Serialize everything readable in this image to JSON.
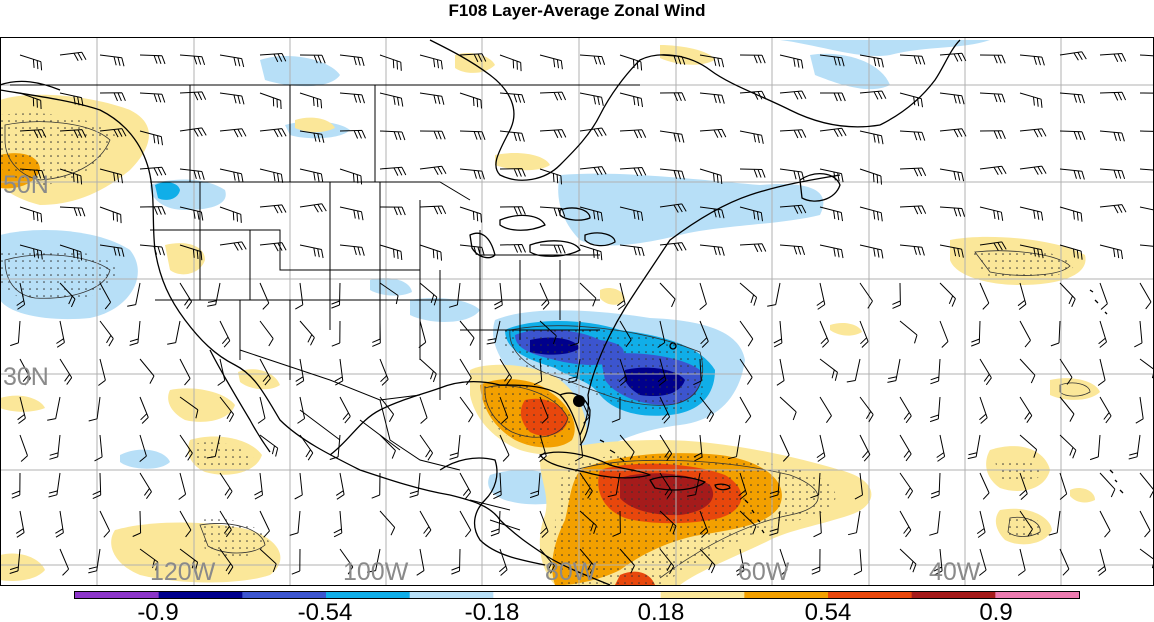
{
  "title": "F108 Layer-Average Zonal Wind",
  "lat_labels": [
    "50N",
    "30N"
  ],
  "lon_labels": [
    "120W",
    "100W",
    "80W",
    "60W",
    "40W"
  ],
  "colorbar": {
    "tick_labels": [
      "-0.9",
      "-0.54",
      "-0.18",
      "0.18",
      "0.54",
      "0.9"
    ],
    "colors": [
      "#8c35c9",
      "#00008c",
      "#3c55cf",
      "#10aee8",
      "#b7dff7",
      "#ffffff",
      "#ffffff",
      "#fbe799",
      "#f3a000",
      "#e8470c",
      "#a51b1b",
      "#ec7bb0"
    ]
  },
  "colors": {
    "label_gray": "#8a8a8a",
    "coast": "#000000",
    "grid": "#b0b0b0"
  }
}
